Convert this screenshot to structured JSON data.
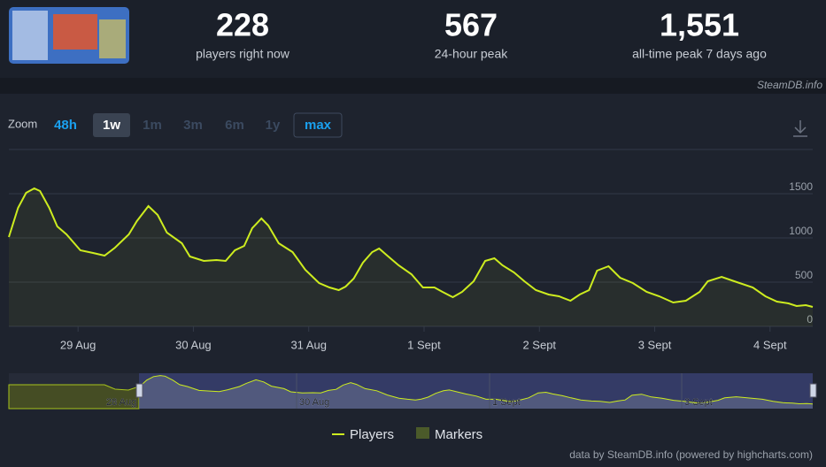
{
  "header": {
    "stats": [
      {
        "value": "228",
        "label": "players right now"
      },
      {
        "value": "567",
        "label": "24-hour peak"
      },
      {
        "value": "1,551",
        "label": "all-time peak 7 days ago"
      }
    ],
    "source": "SteamDB.info"
  },
  "zoom": {
    "label": "Zoom",
    "buttons": [
      "48h",
      "1w",
      "1m",
      "3m",
      "6m",
      "1y",
      "max"
    ]
  },
  "chart_data": {
    "type": "area",
    "x": [
      -0.6,
      -0.52,
      -0.45,
      -0.38,
      -0.33,
      -0.25,
      -0.18,
      -0.1,
      0.02,
      0.13,
      0.23,
      0.32,
      0.44,
      0.51,
      0.61,
      0.69,
      0.77,
      0.9,
      0.97,
      1.09,
      1.2,
      1.28,
      1.36,
      1.44,
      1.51,
      1.59,
      1.65,
      1.74,
      1.86,
      1.97,
      2.09,
      2.18,
      2.26,
      2.32,
      2.39,
      2.47,
      2.55,
      2.61,
      2.69,
      2.78,
      2.89,
      2.99,
      3.09,
      3.16,
      3.25,
      3.33,
      3.43,
      3.53,
      3.61,
      3.68,
      3.78,
      3.87,
      3.97,
      4.08,
      4.17,
      4.27,
      4.35,
      4.43,
      4.5,
      4.6,
      4.7,
      4.81,
      4.93,
      5.04,
      5.16,
      5.27,
      5.39,
      5.46,
      5.58,
      5.69,
      5.85,
      5.96,
      6.06,
      6.16,
      6.23,
      6.31,
      6.37
    ],
    "series": [
      {
        "name": "Players",
        "color": "#cdec1f",
        "values": [
          1010,
          1340,
          1510,
          1560,
          1530,
          1340,
          1130,
          1040,
          860,
          830,
          800,
          890,
          1040,
          1190,
          1360,
          1260,
          1060,
          940,
          790,
          740,
          750,
          740,
          860,
          910,
          1110,
          1220,
          1140,
          940,
          840,
          640,
          490,
          440,
          410,
          450,
          540,
          720,
          840,
          880,
          790,
          690,
          590,
          440,
          440,
          390,
          330,
          390,
          510,
          740,
          770,
          690,
          610,
          510,
          410,
          360,
          340,
          290,
          360,
          410,
          630,
          680,
          550,
          490,
          390,
          340,
          270,
          290,
          390,
          510,
          560,
          510,
          440,
          340,
          280,
          260,
          230,
          240,
          220
        ]
      }
    ],
    "legend_extra": "Markers",
    "xlim": [
      -0.6,
      6.37
    ],
    "xticks": [
      {
        "value": 0,
        "label": "29 Aug"
      },
      {
        "value": 1,
        "label": "30 Aug"
      },
      {
        "value": 2,
        "label": "31 Aug"
      },
      {
        "value": 3,
        "label": "1 Sept"
      },
      {
        "value": 4,
        "label": "2 Sept"
      },
      {
        "value": 5,
        "label": "3 Sept"
      },
      {
        "value": 6,
        "label": "4 Sept"
      }
    ],
    "ylim": [
      0,
      2000
    ],
    "yticks": [
      0,
      500,
      1000,
      1500
    ],
    "grid": true,
    "navigator_labels": [
      "28 Aug",
      "30 Aug",
      "1 Sept",
      "3 Sept"
    ],
    "credit": "data by SteamDB.info (powered by highcharts.com)"
  }
}
